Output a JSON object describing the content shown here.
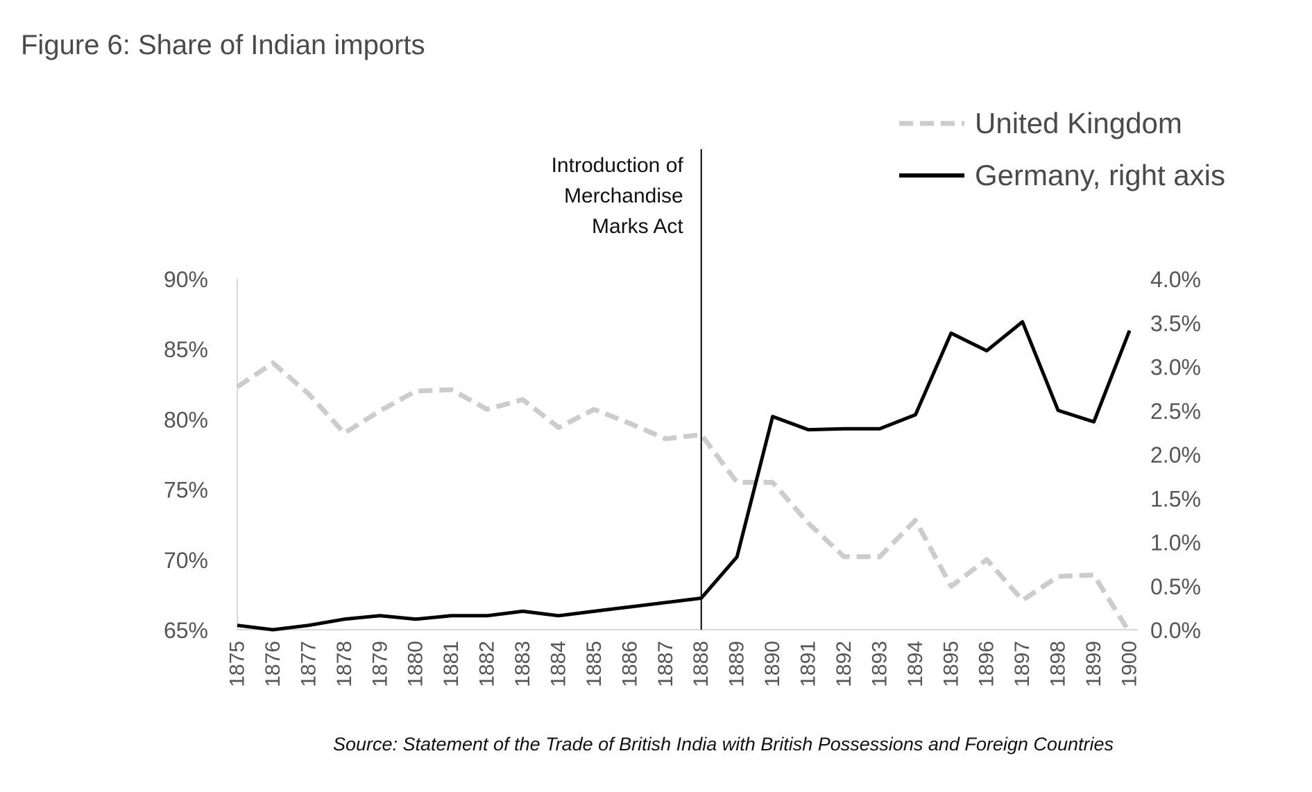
{
  "figure_title": "Figure 6: Share of Indian imports",
  "source_note": "Source: Statement of the Trade of British India with British Possessions and Foreign Countries",
  "chart_data": {
    "type": "line",
    "title": "Figure 6: Share of Indian imports",
    "x": [
      1875,
      1876,
      1877,
      1878,
      1879,
      1880,
      1881,
      1882,
      1883,
      1884,
      1885,
      1886,
      1887,
      1888,
      1889,
      1890,
      1891,
      1892,
      1893,
      1894,
      1895,
      1896,
      1897,
      1898,
      1899,
      1900
    ],
    "x_tick_labels": [
      "1875",
      "1876",
      "1877",
      "1878",
      "1879",
      "1880",
      "1881",
      "1882",
      "1883",
      "1884",
      "1885",
      "1886",
      "1887",
      "1888",
      "1889",
      "1890",
      "1891",
      "1892",
      "1893",
      "1894",
      "1895",
      "1896",
      "1897",
      "1898",
      "1899",
      "1900"
    ],
    "y_left": {
      "min": 65,
      "max": 90,
      "ticks": [
        65,
        70,
        75,
        80,
        85,
        90
      ],
      "tick_labels": [
        "65%",
        "70%",
        "75%",
        "80%",
        "85%",
        "90%"
      ]
    },
    "y_right": {
      "min": 0,
      "max": 4,
      "ticks": [
        0,
        0.5,
        1,
        1.5,
        2,
        2.5,
        3,
        3.5,
        4
      ],
      "tick_labels": [
        "0.0%",
        "0.5%",
        "1.0%",
        "1.5%",
        "2.0%",
        "2.5%",
        "3.0%",
        "3.5%",
        "4.0%"
      ]
    },
    "series": [
      {
        "name": "United Kingdom",
        "axis": "left",
        "style": "dashed",
        "color": "#cccccc",
        "values": [
          82.3,
          84.0,
          81.8,
          79.0,
          80.6,
          82.0,
          82.1,
          80.7,
          81.4,
          79.4,
          80.7,
          79.7,
          78.6,
          78.9,
          75.5,
          75.5,
          72.6,
          70.2,
          70.2,
          72.8,
          68.1,
          70.0,
          67.1,
          68.8,
          68.9,
          64.8
        ]
      },
      {
        "name": "Germany, right axis",
        "axis": "right",
        "style": "solid",
        "color": "#000000",
        "values": [
          0.05,
          0.0,
          0.05,
          0.12,
          0.16,
          0.12,
          0.16,
          0.16,
          0.21,
          0.16,
          0.21,
          0.26,
          0.31,
          0.36,
          0.83,
          2.43,
          2.28,
          2.29,
          2.29,
          2.45,
          3.38,
          3.18,
          3.51,
          2.5,
          2.37,
          3.41
        ]
      }
    ],
    "annotations": [
      {
        "x": 1888,
        "lines": [
          "Introduction of",
          "Merchandise",
          "Marks Act"
        ]
      }
    ],
    "legend": {
      "placement": "top-right",
      "entries": [
        "United Kingdom",
        "Germany, right axis"
      ]
    },
    "grid": false
  }
}
